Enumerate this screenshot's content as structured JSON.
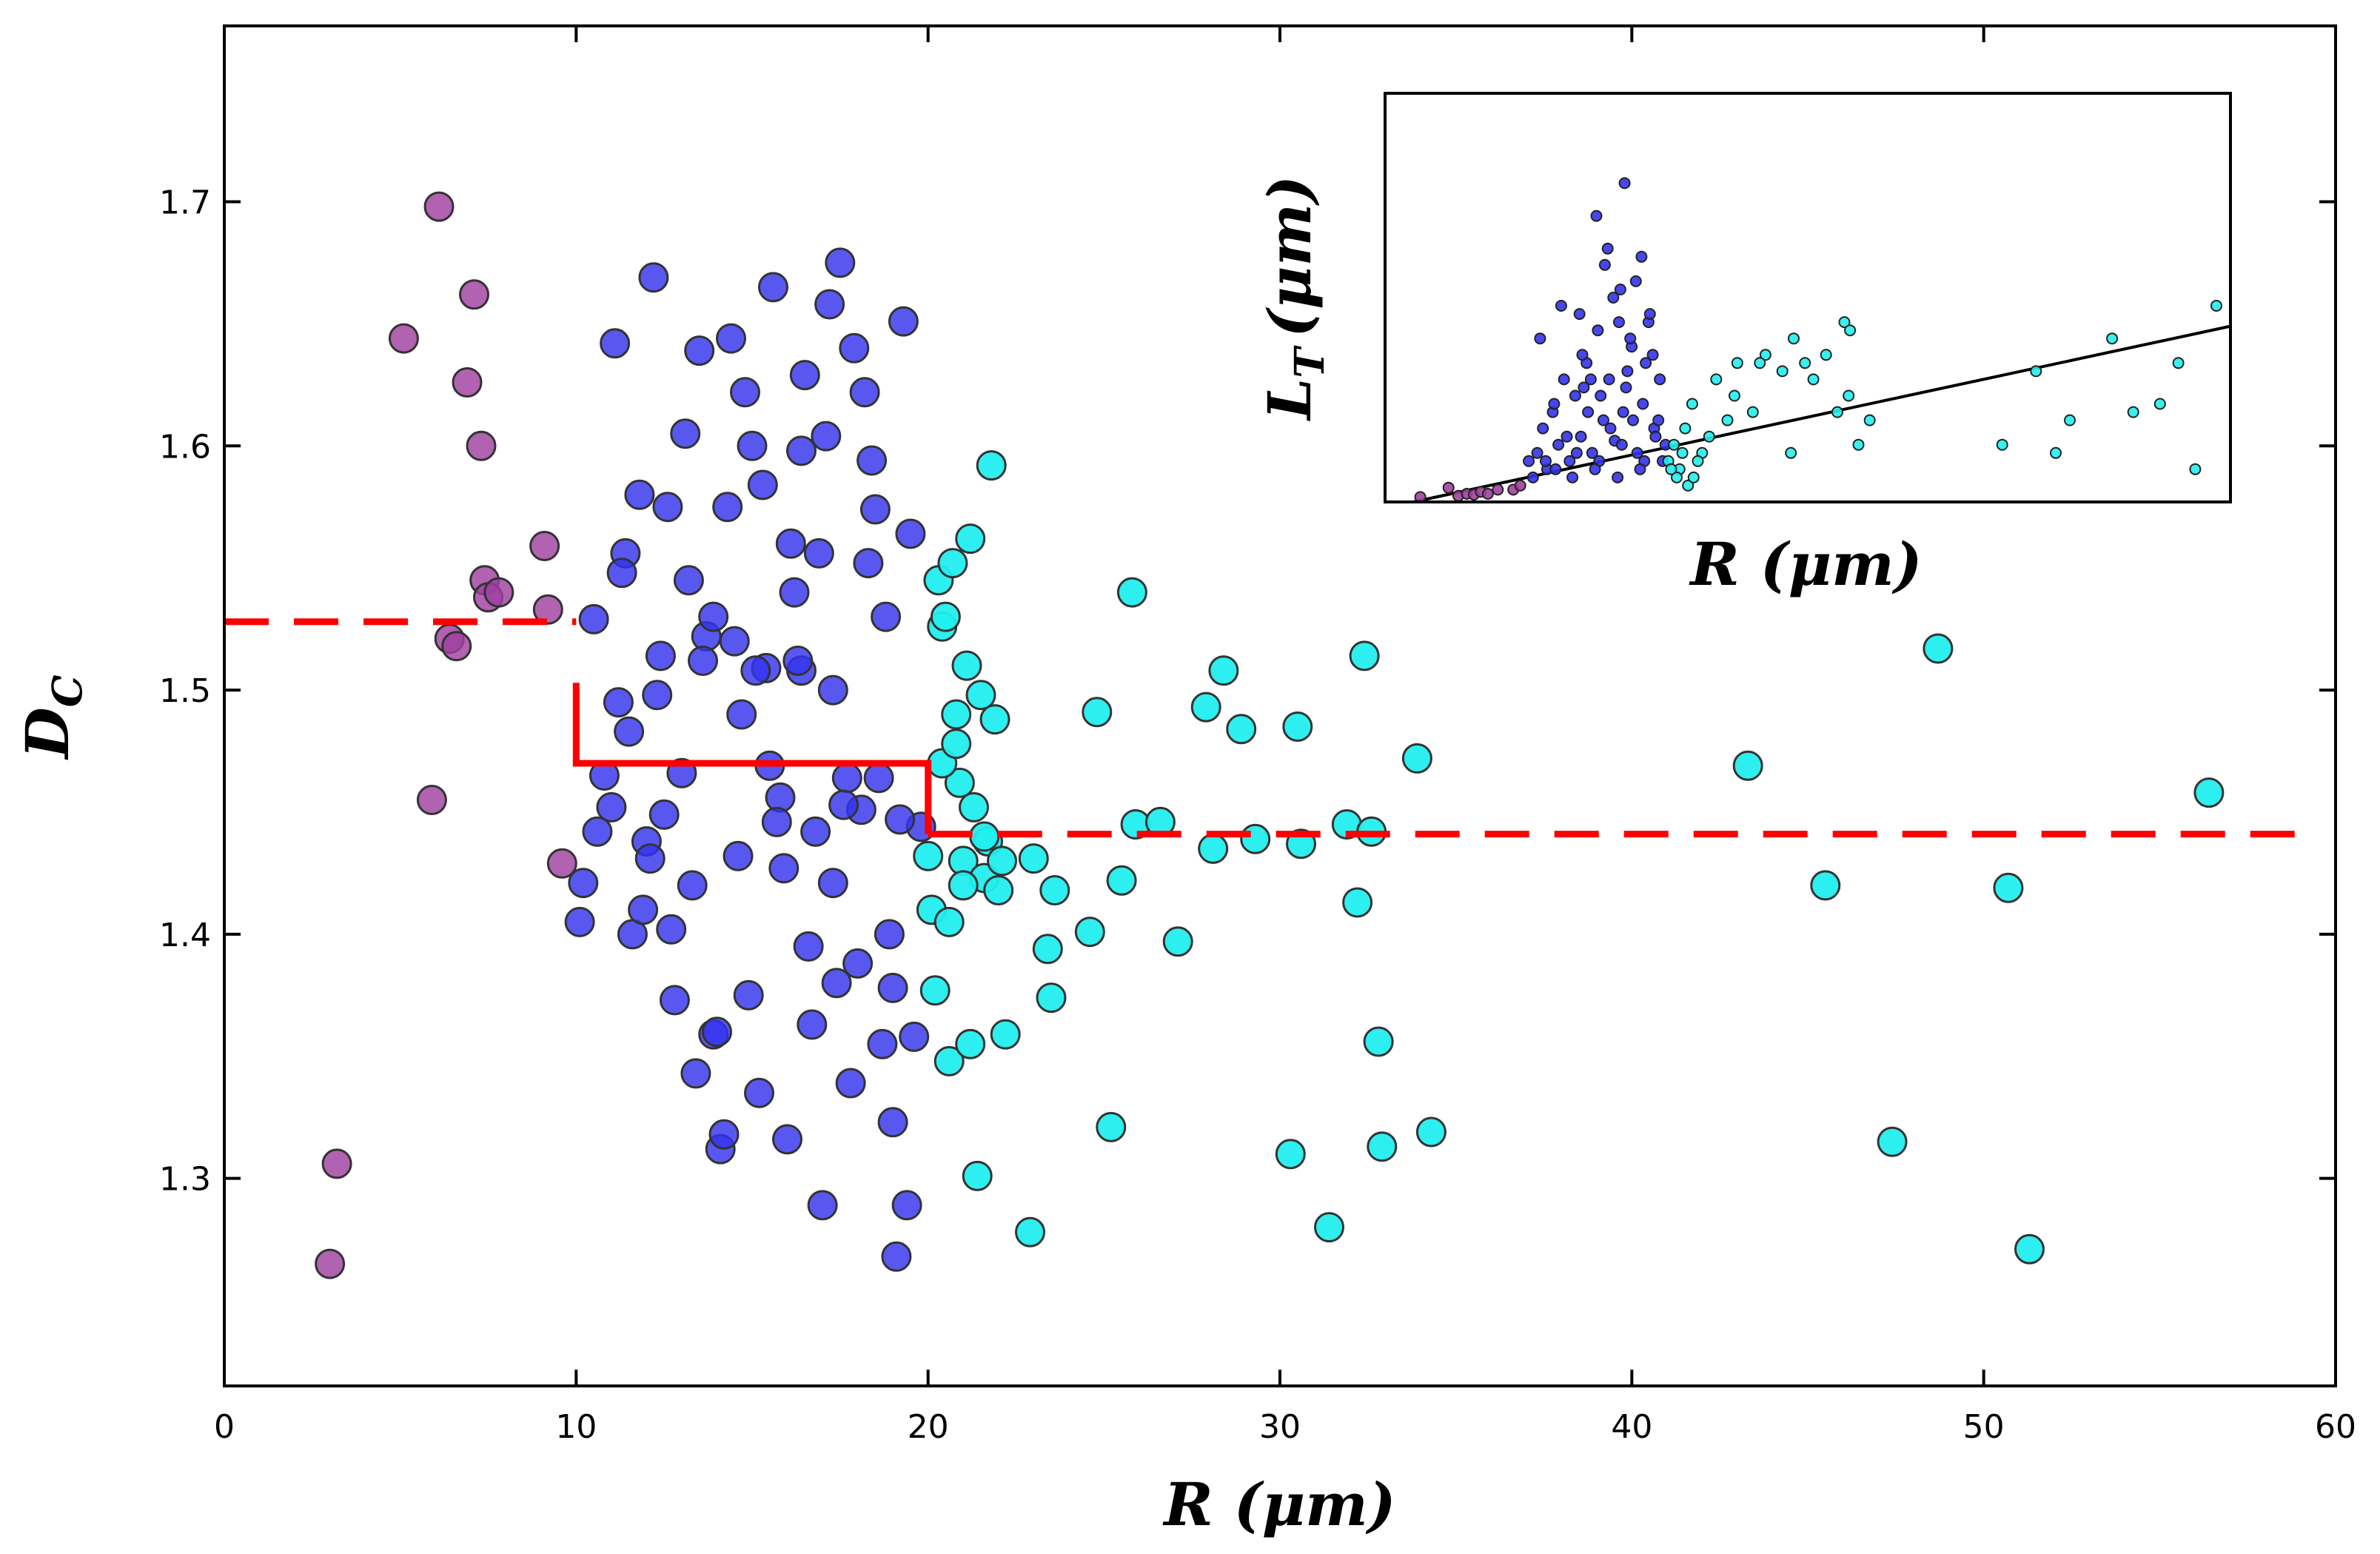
{
  "chart_data": [
    {
      "type": "scatter",
      "title": "",
      "xlabel": "R (μm)",
      "ylabel_main": "D",
      "ylabel_sub": "C",
      "xlim": [
        0,
        60
      ],
      "ylim": [
        1.215,
        1.772
      ],
      "xticks": [
        0,
        10,
        20,
        30,
        40,
        50,
        60
      ],
      "yticks": [
        1.3,
        1.4,
        1.5,
        1.6,
        1.7
      ],
      "xtick_labels": [
        "0",
        "10",
        "20",
        "30",
        "40",
        "50",
        "60"
      ],
      "ytick_labels": [
        "1.3",
        "1.4",
        "1.5",
        "1.6",
        "1.7"
      ],
      "grid": false,
      "colors": {
        "small": "#A040A0",
        "medium": "#3333EE",
        "large": "#22EEEE",
        "fit_line": "#FF0000",
        "edge": "#333333"
      },
      "series": [
        {
          "group": "small",
          "x": [
            3.0,
            3.2,
            5.1,
            5.9,
            6.1,
            6.4,
            6.6,
            6.9,
            7.1,
            7.3,
            7.4,
            7.5,
            7.8,
            9.1,
            9.2,
            9.6
          ],
          "y": [
            1.265,
            1.306,
            1.644,
            1.455,
            1.698,
            1.521,
            1.518,
            1.626,
            1.662,
            1.6,
            1.545,
            1.538,
            1.54,
            1.559,
            1.533,
            1.429
          ]
        },
        {
          "group": "medium",
          "x": [
            10.1,
            10.2,
            10.5,
            10.6,
            11.0,
            11.1,
            11.2,
            11.4,
            11.6,
            11.8,
            12.0,
            12.2,
            12.4,
            12.6,
            12.8,
            13.0,
            13.1,
            13.3,
            13.5,
            13.7,
            13.9,
            14.1,
            14.3,
            14.4,
            14.6,
            14.8,
            15.0,
            15.2,
            15.3,
            15.4,
            15.6,
            15.8,
            16.0,
            16.2,
            16.4,
            16.5,
            16.7,
            16.9,
            17.0,
            17.2,
            17.4,
            17.5,
            17.7,
            17.9,
            18.1,
            18.2,
            18.4,
            18.6,
            18.8,
            19.0,
            19.1,
            19.3,
            19.5,
            19.6,
            19.8,
            12.3,
            13.4,
            14.2,
            15.1,
            16.3,
            17.3,
            18.3,
            19.2,
            11.5,
            12.7,
            13.9,
            15.5,
            16.6,
            17.8,
            18.9,
            11.3,
            12.5,
            14.0,
            15.9,
            17.1,
            18.7,
            10.8,
            13.2,
            14.7,
            16.1,
            17.6,
            19.4,
            12.1,
            14.9,
            16.8,
            18.5,
            13.6,
            15.7,
            17.3,
            19.0,
            11.9,
            14.5,
            16.4,
            18.0
          ],
          "y": [
            1.405,
            1.421,
            1.529,
            1.442,
            1.452,
            1.642,
            1.495,
            1.556,
            1.4,
            1.58,
            1.438,
            1.669,
            1.514,
            1.575,
            1.373,
            1.466,
            1.605,
            1.42,
            1.639,
            1.522,
            1.359,
            1.312,
            1.575,
            1.644,
            1.432,
            1.622,
            1.6,
            1.335,
            1.584,
            1.509,
            1.665,
            1.456,
            1.316,
            1.54,
            1.508,
            1.629,
            1.363,
            1.556,
            1.289,
            1.658,
            1.38,
            1.675,
            1.464,
            1.64,
            1.451,
            1.622,
            1.594,
            1.464,
            1.53,
            1.378,
            1.268,
            1.651,
            1.564,
            1.358,
            1.444,
            1.498,
            1.343,
            1.318,
            1.508,
            1.512,
            1.421,
            1.552,
            1.447,
            1.483,
            1.402,
            1.53,
            1.469,
            1.395,
            1.339,
            1.4,
            1.548,
            1.449,
            1.36,
            1.427,
            1.604,
            1.355,
            1.465,
            1.545,
            1.49,
            1.56,
            1.453,
            1.289,
            1.431,
            1.375,
            1.442,
            1.574,
            1.512,
            1.446,
            1.5,
            1.323,
            1.41,
            1.52,
            1.598,
            1.388
          ]
        },
        {
          "group": "large",
          "x": [
            20.0,
            20.2,
            20.4,
            20.6,
            20.8,
            21.0,
            21.2,
            21.4,
            21.6,
            21.8,
            22.0,
            22.2,
            22.9,
            23.0,
            23.4,
            23.5,
            23.6,
            24.6,
            24.8,
            25.2,
            25.5,
            25.8,
            25.9,
            26.6,
            27.1,
            27.9,
            28.1,
            28.4,
            28.9,
            29.3,
            30.3,
            30.5,
            30.6,
            31.4,
            31.9,
            32.2,
            32.4,
            32.6,
            32.8,
            32.9,
            33.9,
            34.3,
            43.3,
            45.5,
            47.4,
            48.7,
            50.7,
            51.3,
            56.4,
            20.3,
            20.7,
            21.1,
            21.5,
            21.9,
            20.5,
            20.9,
            21.3,
            21.7,
            22.1,
            20.1,
            20.6,
            21.0,
            21.6,
            20.4,
            20.8,
            21.2
          ],
          "y": [
            1.432,
            1.377,
            1.526,
            1.348,
            1.49,
            1.43,
            1.562,
            1.301,
            1.423,
            1.592,
            1.418,
            1.359,
            1.278,
            1.431,
            1.394,
            1.374,
            1.418,
            1.401,
            1.491,
            1.321,
            1.422,
            1.54,
            1.445,
            1.446,
            1.397,
            1.493,
            1.435,
            1.508,
            1.484,
            1.439,
            1.31,
            1.485,
            1.437,
            1.28,
            1.445,
            1.413,
            1.514,
            1.442,
            1.356,
            1.313,
            1.472,
            1.319,
            1.469,
            1.42,
            1.315,
            1.517,
            1.419,
            1.271,
            1.458,
            1.545,
            1.552,
            1.51,
            1.498,
            1.488,
            1.53,
            1.462,
            1.452,
            1.438,
            1.43,
            1.41,
            1.405,
            1.42,
            1.44,
            1.47,
            1.478,
            1.355
          ]
        }
      ],
      "fit_lines": [
        {
          "x": [
            0,
            10
          ],
          "y": [
            1.528,
            1.528
          ],
          "style": "dashed"
        },
        {
          "x": [
            10,
            10,
            20,
            20
          ],
          "y": [
            1.503,
            1.47,
            1.47,
            1.441
          ],
          "style": "solid"
        },
        {
          "x": [
            20,
            59
          ],
          "y": [
            1.441,
            1.441
          ],
          "style": "dashed"
        }
      ]
    },
    {
      "type": "scatter",
      "title": "",
      "xlabel": "R (μm)",
      "ylabel_main": "L",
      "ylabel_sub": "T",
      "ylabel_unit": "(μm)",
      "xlim": [
        0,
        60
      ],
      "ylim": [
        0,
        1
      ],
      "ticks_shown": false,
      "grid": false,
      "trend_line": {
        "x": [
          2.0,
          60.0
        ],
        "y": [
          0.0,
          0.43
        ]
      },
      "series": [
        {
          "group": "small",
          "x": [
            2.5,
            4.5,
            5.2,
            5.8,
            6.3,
            6.8,
            7.3,
            8.0,
            9.1,
            9.6
          ],
          "y": [
            0.012,
            0.035,
            0.015,
            0.02,
            0.018,
            0.025,
            0.02,
            0.03,
            0.03,
            0.04
          ]
        },
        {
          "group": "medium",
          "x": [
            10.2,
            10.8,
            11.2,
            11.5,
            11.9,
            12.3,
            12.7,
            13.1,
            13.5,
            13.9,
            14.3,
            14.7,
            15.1,
            15.5,
            15.9,
            16.3,
            16.7,
            17.1,
            17.5,
            17.9,
            18.3,
            18.7,
            19.1,
            19.5,
            19.9,
            10.5,
            11.4,
            12.1,
            12.9,
            13.6,
            14.4,
            15.2,
            16.0,
            16.8,
            17.6,
            18.4,
            19.2,
            11.0,
            12.5,
            14.0,
            15.6,
            17.2,
            18.8,
            13.3,
            14.9,
            16.5,
            18.1,
            19.7,
            15.3,
            16.9,
            18.5,
            14.1,
            17.8,
            19.4,
            12.0,
            13.8,
            15.8,
            17.4,
            19.0,
            16.2,
            17.0,
            15.0,
            18.2,
            14.6,
            16.6
          ],
          "y": [
            0.1,
            0.12,
            0.18,
            0.08,
            0.22,
            0.14,
            0.3,
            0.1,
            0.26,
            0.16,
            0.34,
            0.12,
            0.42,
            0.2,
            0.3,
            0.15,
            0.52,
            0.28,
            0.38,
            0.12,
            0.24,
            0.44,
            0.18,
            0.3,
            0.14,
            0.06,
            0.1,
            0.08,
            0.16,
            0.12,
            0.22,
            0.1,
            0.18,
            0.14,
            0.2,
            0.1,
            0.16,
            0.4,
            0.48,
            0.36,
            0.58,
            0.32,
            0.46,
            0.06,
            0.08,
            0.06,
            0.08,
            0.1,
            0.26,
            0.22,
            0.34,
            0.28,
            0.54,
            0.2,
            0.24,
            0.46,
            0.62,
            0.4,
            0.36,
            0.5,
            0.78,
            0.7,
            0.6,
            0.3,
            0.44
          ]
        },
        {
          "group": "large",
          "x": [
            20.1,
            20.5,
            20.9,
            21.3,
            21.8,
            22.5,
            23.5,
            24.3,
            25.0,
            26.1,
            27.0,
            28.2,
            29.0,
            29.8,
            30.4,
            31.3,
            32.1,
            32.9,
            33.6,
            34.4,
            43.8,
            46.2,
            47.6,
            48.6,
            51.6,
            53.1,
            55.0,
            56.3,
            57.5,
            59.0,
            20.7,
            21.5,
            22.2,
            23.0,
            24.8,
            26.6,
            28.8,
            32.6,
            33.0,
            20.3,
            21.1,
            21.9
          ],
          "y": [
            0.1,
            0.14,
            0.08,
            0.18,
            0.24,
            0.12,
            0.3,
            0.2,
            0.34,
            0.22,
            0.36,
            0.32,
            0.4,
            0.34,
            0.3,
            0.36,
            0.22,
            0.26,
            0.14,
            0.2,
            0.14,
            0.32,
            0.12,
            0.2,
            0.4,
            0.22,
            0.24,
            0.34,
            0.08,
            0.48,
            0.06,
            0.04,
            0.1,
            0.16,
            0.26,
            0.34,
            0.12,
            0.44,
            0.42,
            0.08,
            0.12,
            0.06
          ]
        }
      ]
    }
  ]
}
